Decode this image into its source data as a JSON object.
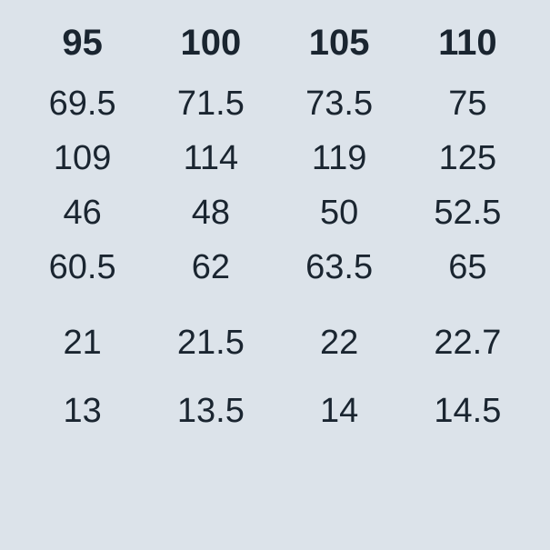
{
  "table": {
    "type": "table",
    "background_color": "#dce3ea",
    "text_color": "#1a2530",
    "header_fontsize": 40,
    "header_fontweight": 700,
    "body_fontsize": 38,
    "body_fontweight": 400,
    "columns": [
      "95",
      "100",
      "105",
      "110"
    ],
    "rows": [
      [
        "69.5",
        "71.5",
        "73.5",
        "75"
      ],
      [
        "109",
        "114",
        "119",
        "125"
      ],
      [
        "46",
        "48",
        "50",
        "52.5"
      ],
      [
        "60.5",
        "62",
        "63.5",
        "65"
      ],
      [
        "21",
        "21.5",
        "22",
        "22.7"
      ],
      [
        "13",
        "13.5",
        "14",
        "14.5"
      ]
    ],
    "gap_before_rows": [
      4,
      5
    ]
  }
}
